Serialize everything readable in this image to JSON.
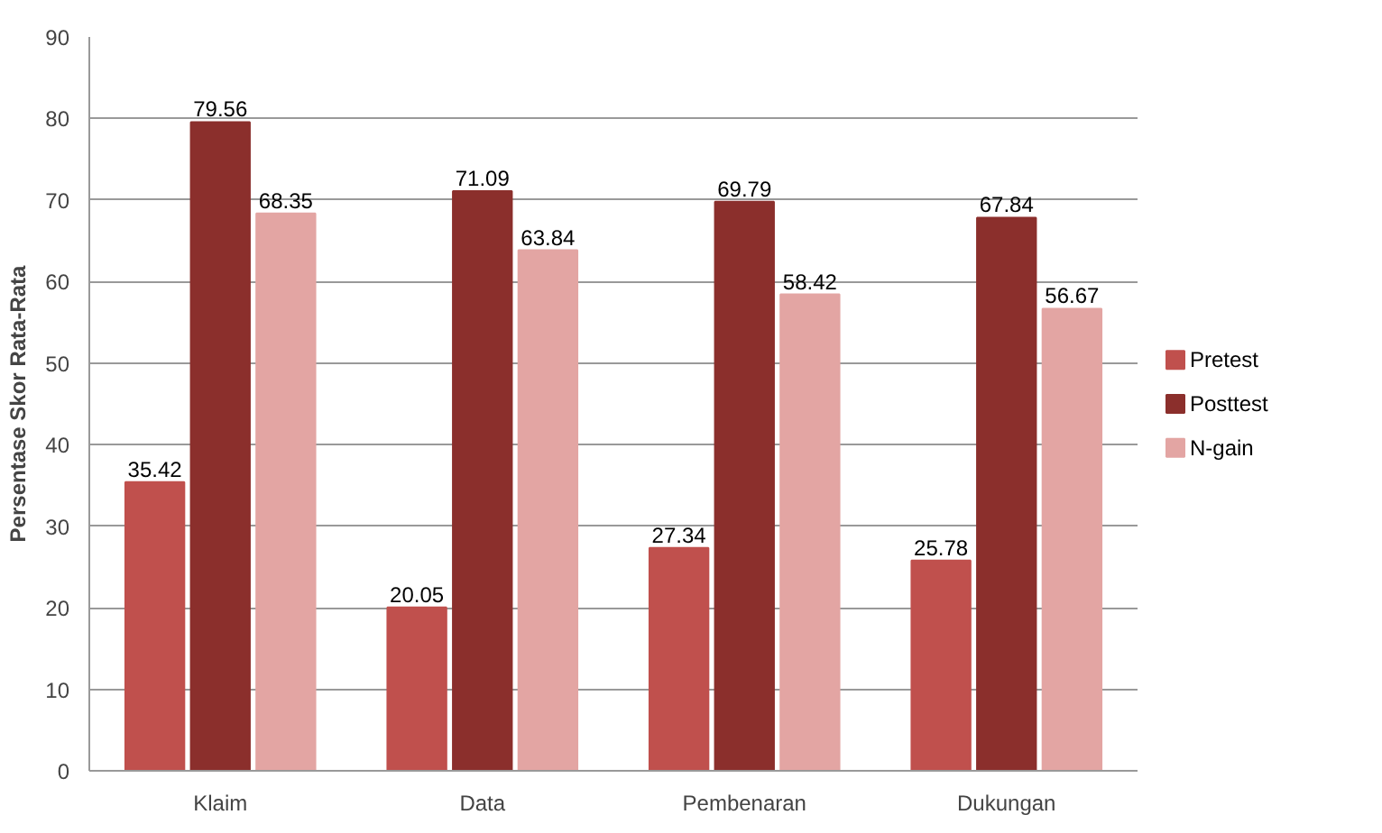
{
  "chart_data": {
    "type": "bar",
    "ylabel": "Persentase Skor Rata-Rata",
    "categories": [
      "Klaim",
      "Data",
      "Pembenaran",
      "Dukungan"
    ],
    "series": [
      {
        "name": "Pretest",
        "color": "#c0504d",
        "values": [
          35.42,
          20.05,
          27.34,
          25.78
        ]
      },
      {
        "name": "Posttest",
        "color": "#8b2f2c",
        "values": [
          79.56,
          71.09,
          69.79,
          67.84
        ]
      },
      {
        "name": "N-gain",
        "color": "#e3a5a3",
        "values": [
          68.35,
          63.84,
          58.42,
          56.67
        ]
      }
    ],
    "ylim": [
      0,
      90
    ],
    "yticks": [
      0,
      10,
      20,
      30,
      40,
      50,
      60,
      70,
      80,
      90
    ],
    "grid": "y",
    "legend": "right",
    "data_labels": true
  }
}
